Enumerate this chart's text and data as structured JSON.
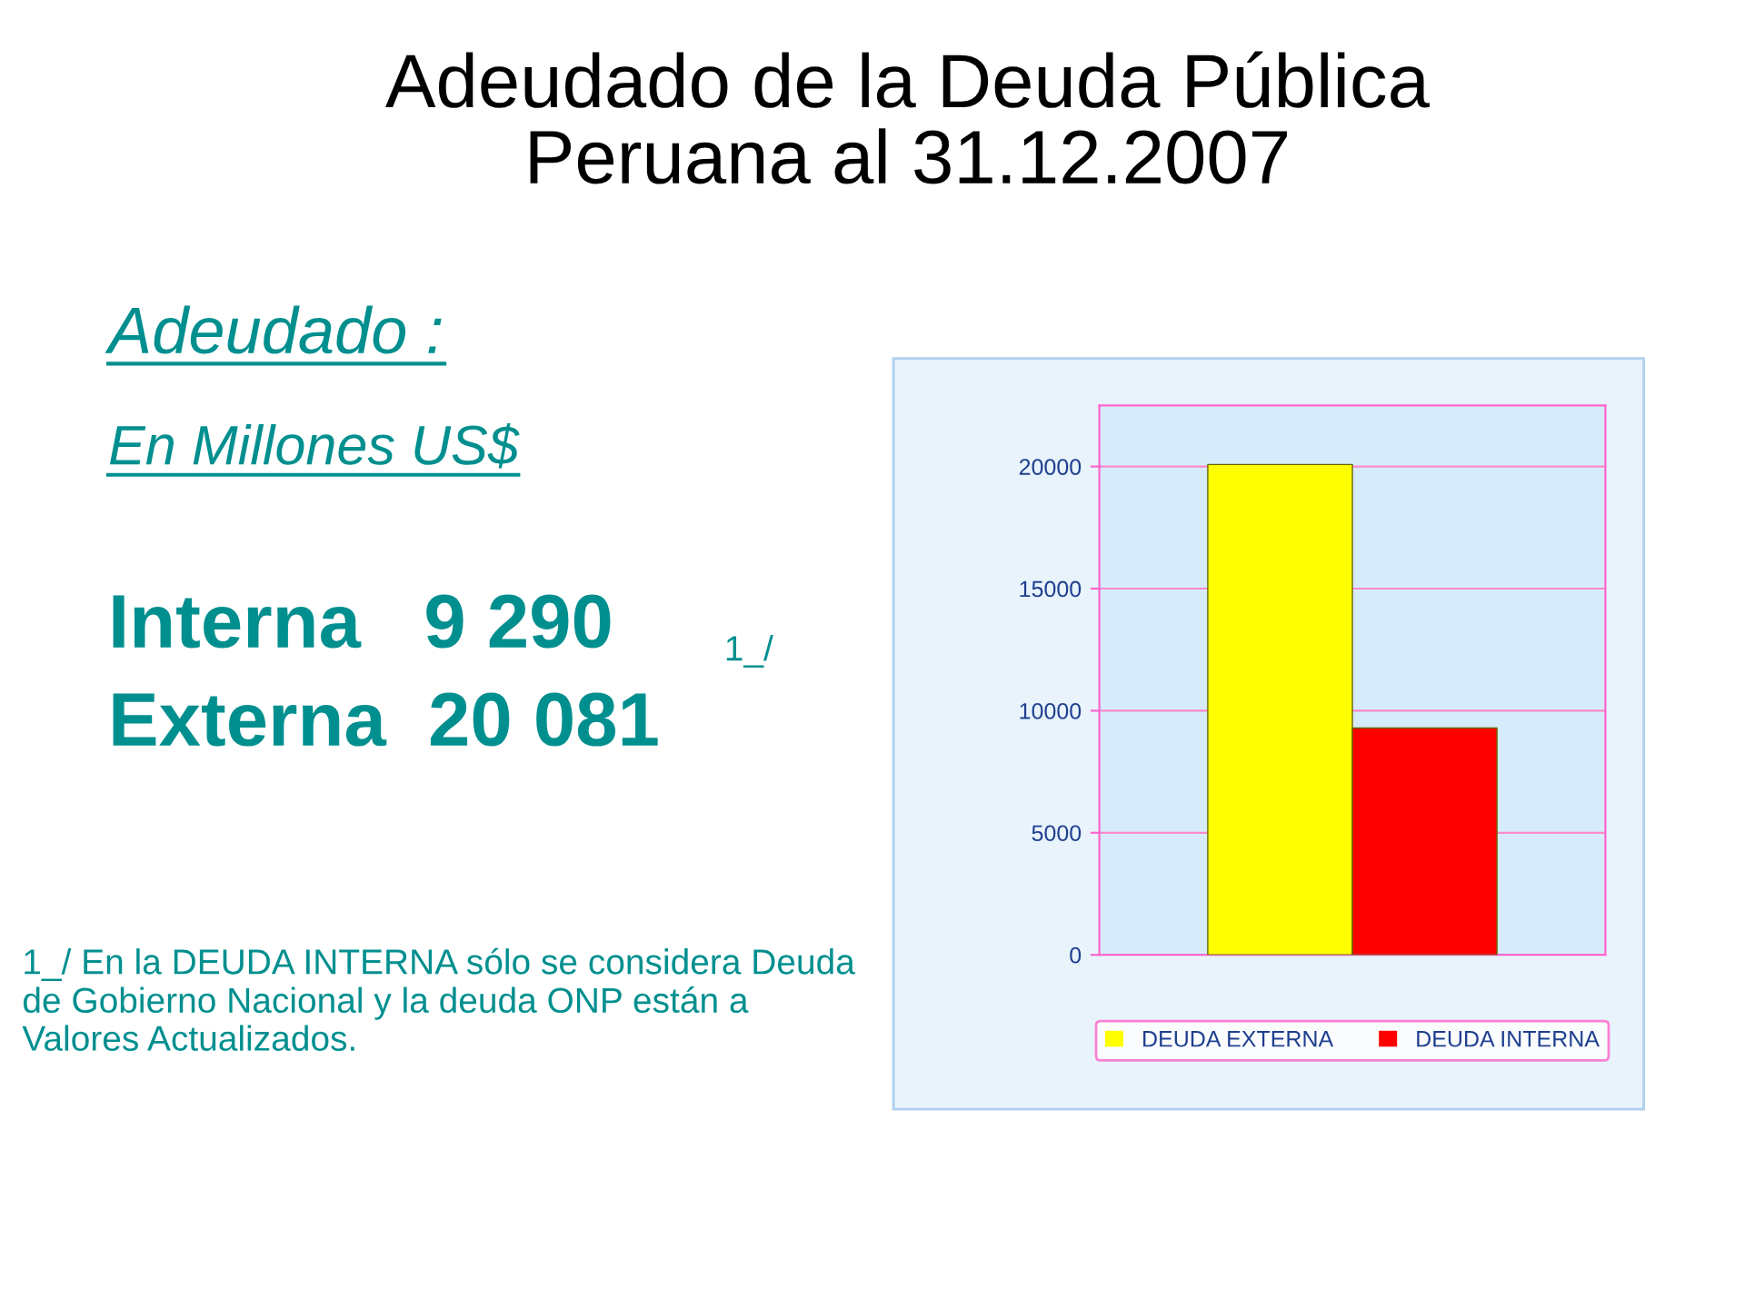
{
  "chart_data": {
    "type": "bar",
    "title": "Adeudado de la Deuda Pública\nPeruana al 31.12.2007",
    "categories": [
      null
    ],
    "series": [
      {
        "name": "DEUDA EXTERNA",
        "color": "#ffff00",
        "values": [
          20081
        ]
      },
      {
        "name": "DEUDA INTERNA",
        "color": "#ff0000",
        "values": [
          9290
        ]
      }
    ],
    "ylim": [
      0,
      22500
    ],
    "yticks": [
      0,
      5000,
      10000,
      15000,
      20000
    ],
    "grid": "y",
    "legend": "bottom",
    "annotations": [
      "Adeudado :",
      "En Millones US$",
      "Interna   9 290",
      "1_/",
      "Externa  20 081",
      "1_/ En la DEUDA INTERNA sólo se considera Deuda de Gobierno Nacional y la deuda ONP están a Valores Actualizados."
    ]
  }
}
